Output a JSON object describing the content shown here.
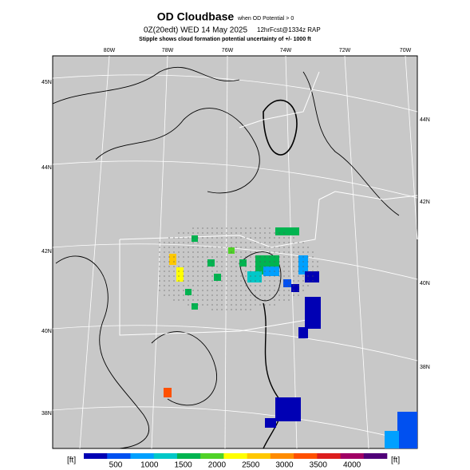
{
  "header": {
    "title": "OD Cloudbase",
    "title_note": "when OD Potential > 0",
    "run": "0Z(20edt) WED 14 May 2025",
    "forecast": "12hrFcst@1334z RAP",
    "subtitle": "Stipple shows cloud formation potential uncertainty of +/- 1000 ft"
  },
  "map": {
    "lon_labels": [
      "80W",
      "78W",
      "76W",
      "74W",
      "72W",
      "70W"
    ],
    "lat_labels_left": [
      "45N",
      "44N",
      "42N",
      "40N",
      "38N"
    ],
    "lat_labels_right": [
      "44N",
      "42N",
      "40N",
      "38N"
    ]
  },
  "colorbar": {
    "unit": "[ft]",
    "ticks": [
      "500",
      "1000",
      "1500",
      "2000",
      "2500",
      "3000",
      "3500",
      "4000"
    ],
    "colors": [
      "#0000b4",
      "#0050f0",
      "#00a0ff",
      "#00c8c8",
      "#00b450",
      "#50d228",
      "#ffff00",
      "#ffc800",
      "#ff8c00",
      "#ff5000",
      "#dc1e1e",
      "#a00064",
      "#500078"
    ]
  }
}
